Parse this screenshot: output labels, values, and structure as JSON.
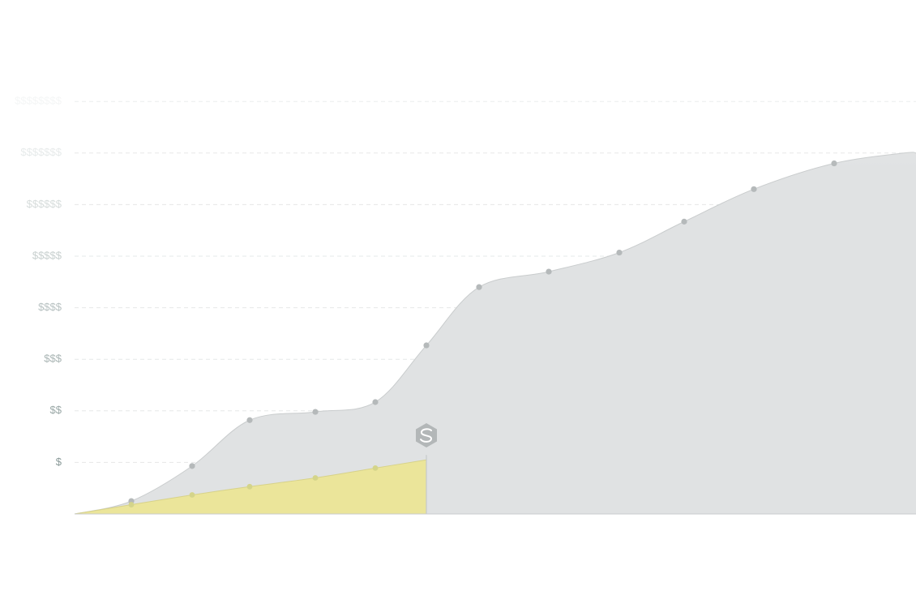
{
  "chart_data": {
    "type": "area",
    "ylim": [
      0,
      8
    ],
    "grid": true,
    "y_ticks": [
      {
        "value": 1,
        "label": "$"
      },
      {
        "value": 2,
        "label": "$$"
      },
      {
        "value": 3,
        "label": "$$$"
      },
      {
        "value": 4,
        "label": "$$$$"
      },
      {
        "value": 5,
        "label": "$$$$$"
      },
      {
        "value": 6,
        "label": "$$$$$$"
      },
      {
        "value": 7,
        "label": "$$$$$$$"
      },
      {
        "value": 8,
        "label": "$$$$$$$$"
      }
    ],
    "xlim": [
      0,
      14
    ],
    "series": [
      {
        "x": [
          0,
          1,
          2,
          3,
          4,
          5,
          6,
          7,
          8,
          9,
          10,
          11,
          12,
          13,
          14
        ],
        "values": [
          0,
          0.25,
          0.93,
          1.82,
          1.98,
          2.17,
          3.27,
          4.4,
          4.7,
          5.07,
          5.67,
          6.3,
          6.8,
          7.0,
          7.0
        ],
        "color": "#e0e2e3",
        "line_color": "#c9cccd",
        "marker_color": "#b5b9ba"
      },
      {
        "x": [
          0,
          1,
          2,
          3,
          4,
          5,
          6
        ],
        "values": [
          0,
          0.18,
          0.37,
          0.53,
          0.7,
          0.89,
          1.05
        ],
        "color": "#ebe59a",
        "line_color": "#c6c9c9",
        "marker_color": "#d4d48a"
      }
    ],
    "highlight": {
      "x": 6,
      "icon": "s-hexagon-icon",
      "color": "#b3b7b8"
    }
  }
}
